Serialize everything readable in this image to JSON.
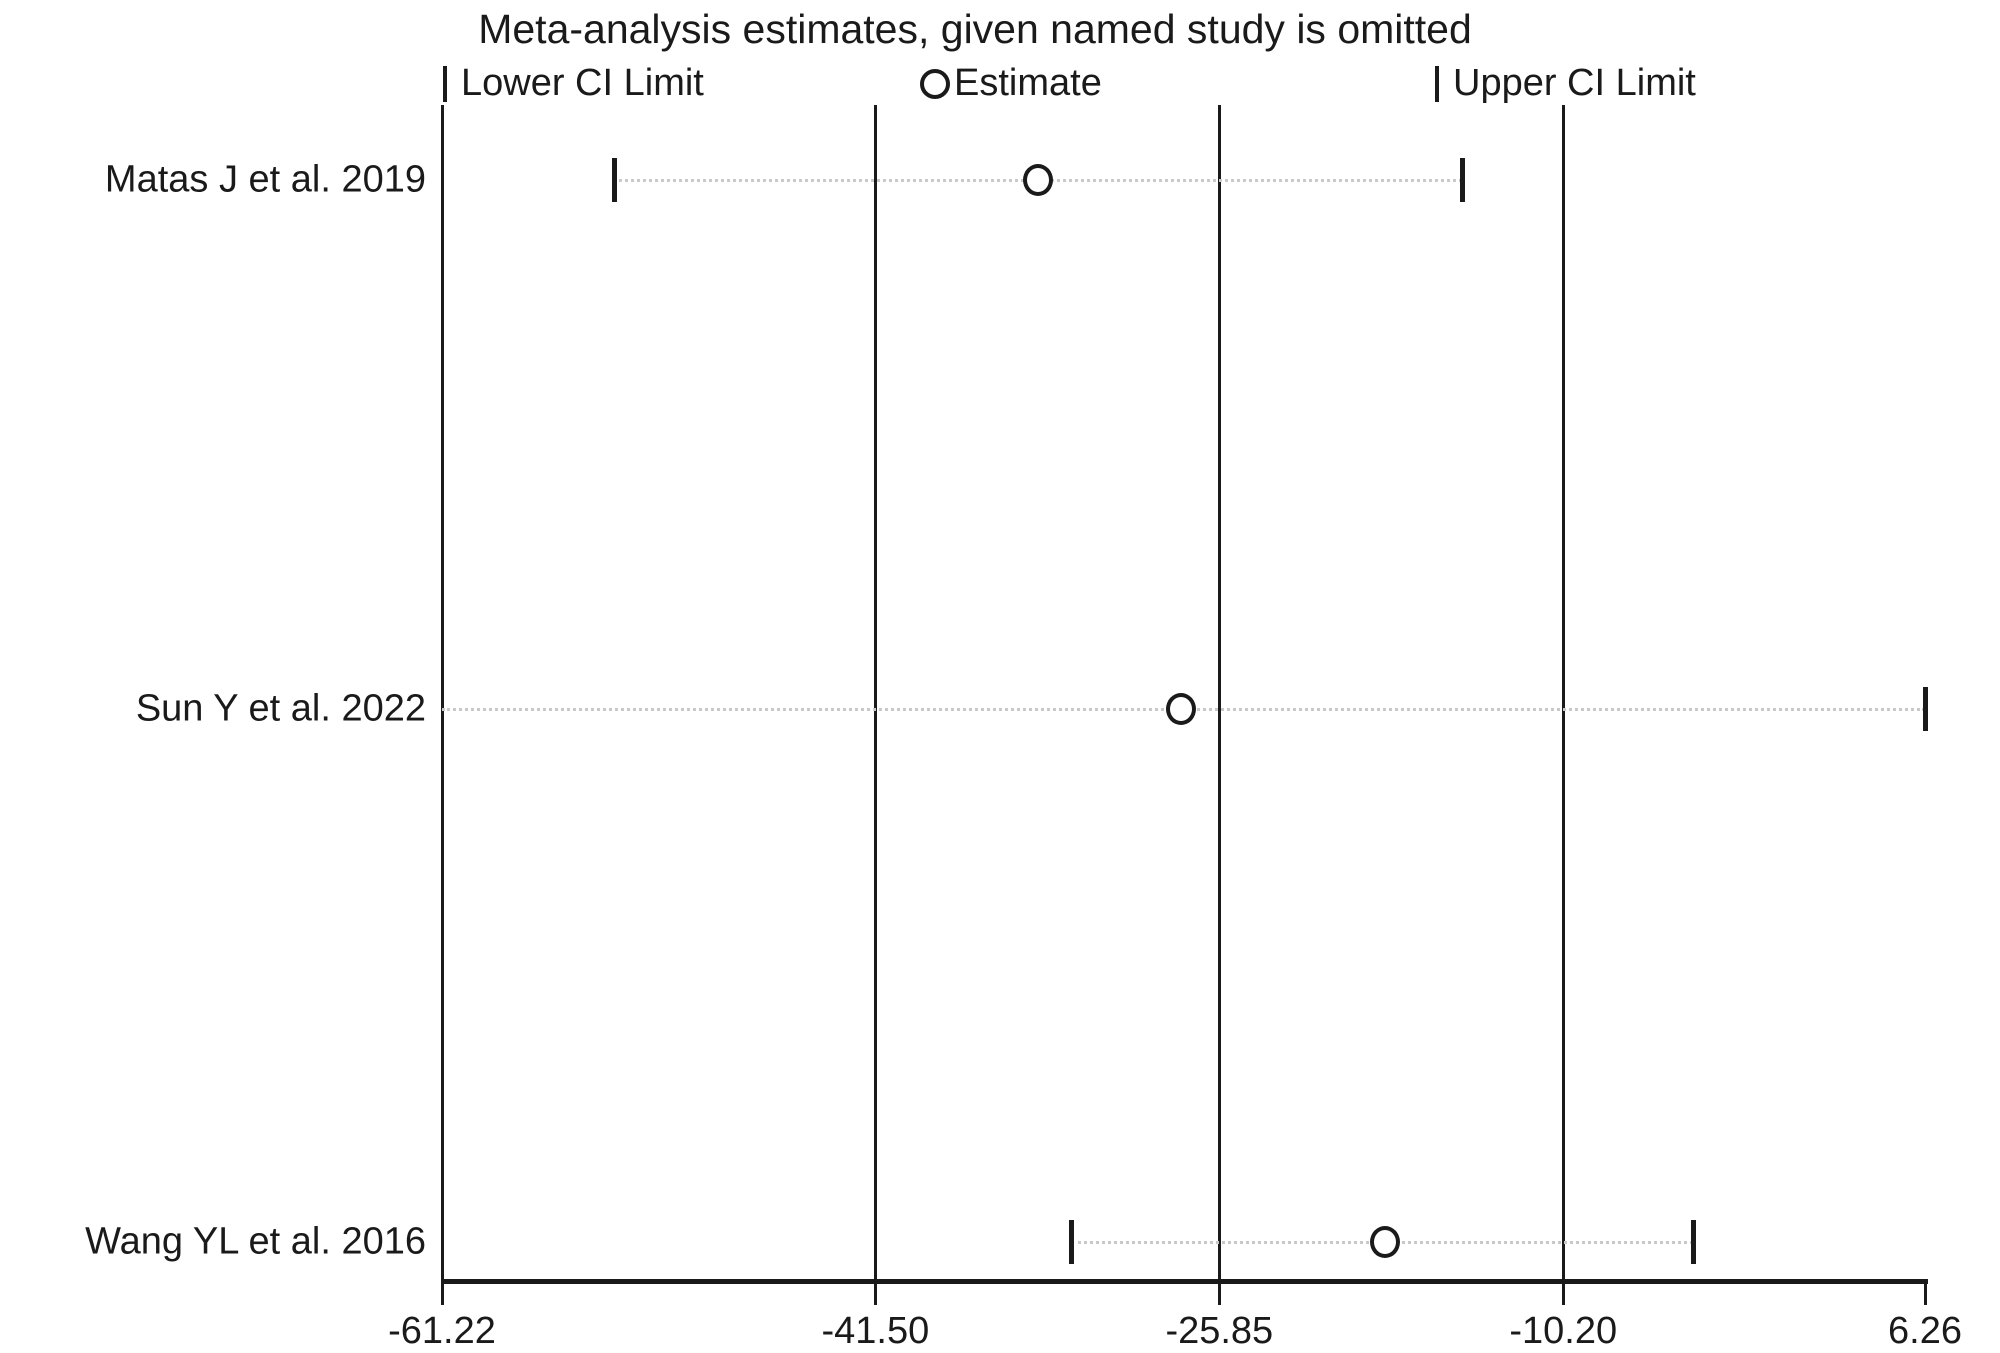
{
  "title": "Meta-analysis estimates, given named study is omitted",
  "legend": {
    "lower_label": "Lower CI Limit",
    "estimate_label": "Estimate",
    "upper_label": "Upper CI Limit"
  },
  "colors": {
    "foreground": "#1a1a1a",
    "background": "#ffffff",
    "dotted_ci_line": "#c9c9c9"
  },
  "chart_data": {
    "type": "scatter",
    "subtype": "meta-analysis leave-one-out sensitivity (metaninf) plot",
    "title": "Meta-analysis estimates, given named study is omitted",
    "xlabel": "",
    "ylabel": "",
    "grid": false,
    "legend_position": "top",
    "legend_entries": [
      "Lower CI Limit",
      "Estimate",
      "Upper CI Limit"
    ],
    "x_axis": {
      "min": -61.22,
      "max": 6.26,
      "tick_values": [
        -61.22,
        -41.5,
        -25.85,
        -10.2,
        6.26
      ],
      "tick_labels": [
        "-61.22",
        "-41.50",
        "-25.85",
        "-10.20",
        "6.26"
      ]
    },
    "reference_lines": {
      "overall_lower_ci": -41.5,
      "overall_estimate": -25.85,
      "overall_upper_ci": -10.2
    },
    "studies": [
      {
        "label": "Matas J et al. 2019",
        "estimate": -34.1,
        "lower_ci": -53.4,
        "upper_ci": -14.8,
        "draw_lower_tick": true,
        "draw_upper_tick": true
      },
      {
        "label": "Sun Y et al. 2022",
        "estimate": -27.6,
        "lower_ci": -61.22,
        "upper_ci": 6.26,
        "draw_lower_tick": false,
        "draw_upper_tick": true
      },
      {
        "label": "Wang YL et al. 2016",
        "estimate": -18.3,
        "lower_ci": -32.6,
        "upper_ci": -4.3,
        "draw_lower_tick": true,
        "draw_upper_tick": true
      }
    ]
  }
}
